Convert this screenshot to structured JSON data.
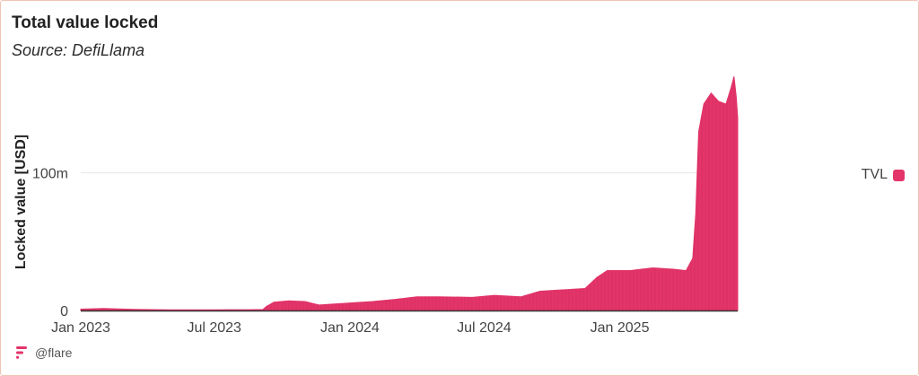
{
  "header": {
    "title": "Total value locked",
    "subtitle": "Source: DefiLlama"
  },
  "footer": {
    "handle": "@flare",
    "logo_icon": "flare-logo-icon"
  },
  "colors": {
    "series": "#e3356a",
    "grid": "#e6e6e6",
    "axis": "#333333",
    "border": "#f2c4b4"
  },
  "chart_data": {
    "type": "area",
    "title": "Total value locked",
    "subtitle": "Source: DefiLlama",
    "xlabel": "",
    "ylabel": "Locked value [USD]",
    "x_ticks": [
      "Jan 2023",
      "Jul 2023",
      "Jan 2024",
      "Jul 2024",
      "Jan 2025"
    ],
    "y_ticks": [
      {
        "value": 0,
        "label": "0"
      },
      {
        "value": 100000000,
        "label": "100m"
      }
    ],
    "ylim": [
      0,
      180000000
    ],
    "xlim": [
      "2023-01-01",
      "2025-06-10"
    ],
    "grid": true,
    "legend": "right",
    "series": [
      {
        "name": "TVL",
        "points": [
          [
            "2023-01-01",
            1000000
          ],
          [
            "2023-02-01",
            1500000
          ],
          [
            "2023-03-15",
            800000
          ],
          [
            "2023-05-01",
            500000
          ],
          [
            "2023-07-01",
            500000
          ],
          [
            "2023-08-15",
            600000
          ],
          [
            "2023-09-05",
            700000
          ],
          [
            "2023-09-10",
            3000000
          ],
          [
            "2023-09-20",
            6000000
          ],
          [
            "2023-10-10",
            7000000
          ],
          [
            "2023-11-01",
            6500000
          ],
          [
            "2023-11-20",
            4000000
          ],
          [
            "2024-01-01",
            5500000
          ],
          [
            "2024-02-01",
            6500000
          ],
          [
            "2024-03-01",
            8000000
          ],
          [
            "2024-04-01",
            10000000
          ],
          [
            "2024-05-01",
            10000000
          ],
          [
            "2024-06-15",
            9500000
          ],
          [
            "2024-07-15",
            11000000
          ],
          [
            "2024-08-20",
            10000000
          ],
          [
            "2024-09-15",
            14000000
          ],
          [
            "2024-10-15",
            15000000
          ],
          [
            "2024-11-15",
            16000000
          ],
          [
            "2024-12-01",
            24000000
          ],
          [
            "2024-12-15",
            29000000
          ],
          [
            "2025-01-15",
            29000000
          ],
          [
            "2025-02-15",
            31000000
          ],
          [
            "2025-03-15",
            30000000
          ],
          [
            "2025-04-01",
            29000000
          ],
          [
            "2025-04-10",
            38000000
          ],
          [
            "2025-04-14",
            70000000
          ],
          [
            "2025-04-18",
            130000000
          ],
          [
            "2025-04-25",
            150000000
          ],
          [
            "2025-05-05",
            158000000
          ],
          [
            "2025-05-15",
            152000000
          ],
          [
            "2025-05-25",
            150000000
          ],
          [
            "2025-06-01",
            162000000
          ],
          [
            "2025-06-05",
            170000000
          ],
          [
            "2025-06-08",
            155000000
          ],
          [
            "2025-06-10",
            140000000
          ]
        ]
      }
    ]
  }
}
